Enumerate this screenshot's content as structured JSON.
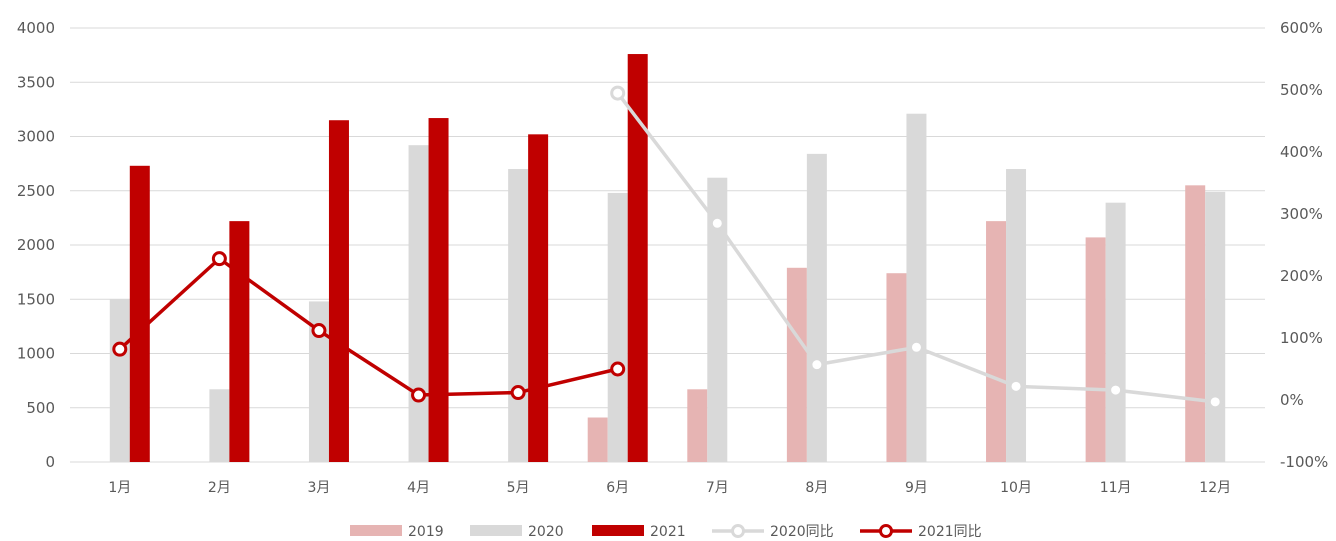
{
  "chart_data": {
    "type": "bar",
    "categories": [
      "1月",
      "2月",
      "3月",
      "4月",
      "5月",
      "6月",
      "7月",
      "8月",
      "9月",
      "10月",
      "11月",
      "12月"
    ],
    "y_left": {
      "ticks": [
        0,
        500,
        1000,
        1500,
        2000,
        2500,
        3000,
        3500,
        4000
      ],
      "lim": [
        0,
        4000
      ]
    },
    "y_right": {
      "ticks": [
        "-100%",
        "0%",
        "100%",
        "200%",
        "300%",
        "400%",
        "500%",
        "600%"
      ],
      "lim": [
        -1.0,
        6.0
      ]
    },
    "gridlines": true,
    "legend_position": "bottom",
    "series": [
      {
        "name": "2019",
        "kind": "bar",
        "axis": "left",
        "color": "#e6b4b3",
        "values": [
          null,
          null,
          null,
          null,
          null,
          410,
          670,
          1790,
          1740,
          2220,
          2070,
          2550
        ]
      },
      {
        "name": "2020",
        "kind": "bar",
        "axis": "left",
        "color": "#d9d9d9",
        "values": [
          1500,
          670,
          1480,
          2920,
          2700,
          2480,
          2620,
          2840,
          3210,
          2700,
          2390,
          2490
        ]
      },
      {
        "name": "2021",
        "kind": "bar",
        "axis": "left",
        "color": "#c00000",
        "values": [
          2730,
          2220,
          3150,
          3170,
          3020,
          3760,
          null,
          null,
          null,
          null,
          null,
          null
        ]
      },
      {
        "name": "2020同比",
        "kind": "line",
        "axis": "right",
        "color": "#d9d9d9",
        "values": [
          null,
          null,
          null,
          null,
          null,
          4.95,
          2.85,
          0.57,
          0.85,
          0.22,
          0.16,
          -0.03
        ]
      },
      {
        "name": "2021同比",
        "kind": "line",
        "axis": "right",
        "color": "#c00000",
        "values": [
          0.82,
          2.28,
          1.12,
          0.08,
          0.12,
          0.5,
          null,
          null,
          null,
          null,
          null,
          null
        ]
      }
    ]
  }
}
